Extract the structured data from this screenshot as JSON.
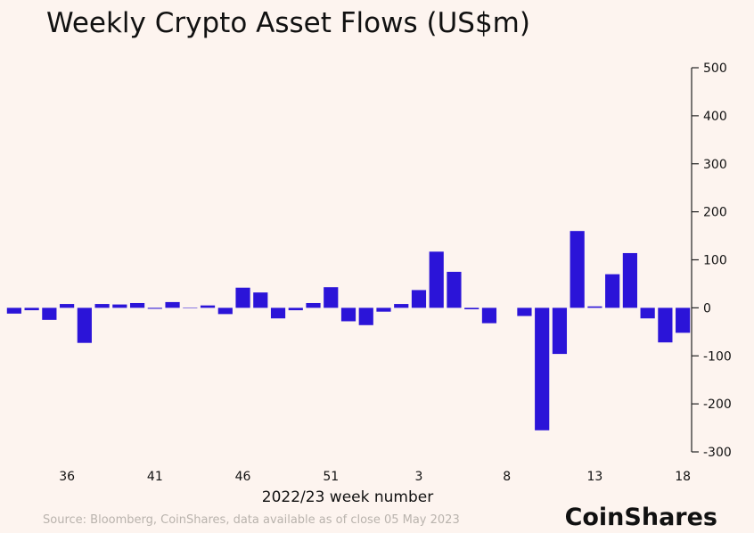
{
  "chart_data": {
    "type": "bar",
    "title": "Weekly Crypto Asset Flows (US$m)",
    "x_label": "2022/23 week number",
    "source": "Source: Bloomberg, CoinShares, data available as of close 05 May 2023",
    "brand": "CoinShares",
    "color": "#2b14d8",
    "categories": [
      null,
      null,
      null,
      "36",
      null,
      null,
      null,
      null,
      "41",
      null,
      null,
      null,
      null,
      "46",
      null,
      null,
      null,
      null,
      "51",
      null,
      null,
      null,
      null,
      "3",
      null,
      null,
      null,
      null,
      "8",
      null,
      null,
      null,
      null,
      "13",
      null,
      null,
      null,
      null,
      "18"
    ],
    "values": [
      -12,
      -5,
      -25,
      8,
      -73,
      8,
      7,
      10,
      -2,
      12,
      -1,
      5,
      -13,
      42,
      32,
      -22,
      -5,
      10,
      43,
      -28,
      -36,
      -8,
      8,
      37,
      117,
      75,
      -3,
      -32,
      0,
      -17,
      -255,
      -96,
      160,
      3,
      70,
      114,
      -22,
      -72,
      -52
    ],
    "ylim": [
      -300,
      500
    ],
    "yticks": [
      -300,
      -200,
      -100,
      0,
      100,
      200,
      300,
      400,
      500
    ],
    "y_axis_side": "right",
    "grid": false
  }
}
